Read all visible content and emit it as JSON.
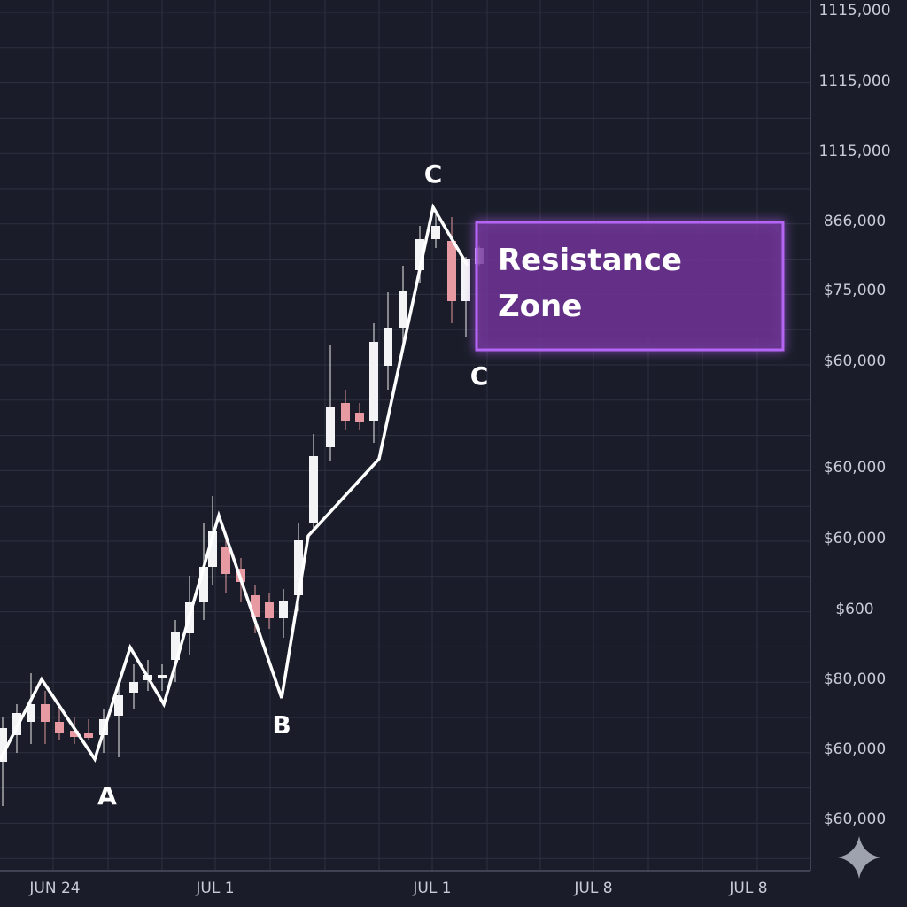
{
  "y_axis_labels": [
    "1115,000",
    "1115,000",
    "1115,000",
    "866,000",
    "$75,000",
    "$60,000",
    "$60,000",
    "$60,000",
    "$600",
    "$80,000",
    "$60,000",
    "$60,000"
  ],
  "x_axis_labels": [
    "JUN 24",
    "JUL 1",
    "JUL 1",
    "JUL 8",
    "JUL 8"
  ],
  "annotations": [
    "A",
    "B",
    "C",
    "C"
  ],
  "resistance_zone": {
    "label": "Resistance Zone"
  }
}
